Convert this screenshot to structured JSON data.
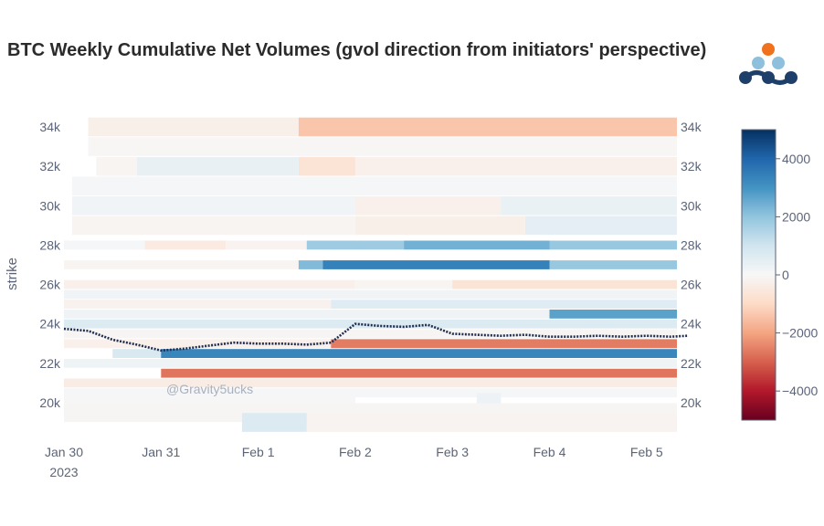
{
  "header": {
    "title": "BTC Weekly Cumulative Net Volumes (gvol direction from initiators' perspective)"
  },
  "logo": {
    "top_color": "#f0711e",
    "mid_color": "#8ec0de",
    "bottom_color": "#1f3f6b"
  },
  "watermark": "@Gravity5ucks",
  "colors": {
    "price_line": "#1f2d50"
  },
  "chart_data": {
    "type": "heatmap",
    "title": "BTC Weekly Cumulative Net Volumes (gvol direction from initiators' perspective)",
    "ylabel": "strike",
    "xlabel": "",
    "x_tick_labels": [
      "Jan 30",
      "Jan 31",
      "Feb 1",
      "Feb 2",
      "Feb 3",
      "Feb 4",
      "Feb 5"
    ],
    "x_tick_sublabel": "2023",
    "x_start": "2023-01-30",
    "x_end": "2023-02-05 12:00",
    "y_tick_values": [
      20000,
      22000,
      24000,
      26000,
      28000,
      30000,
      32000,
      34000
    ],
    "y_tick_labels": [
      "20k",
      "22k",
      "24k",
      "26k",
      "28k",
      "30k",
      "32k",
      "34k"
    ],
    "ylim": [
      18700,
      35000
    ],
    "colorscale": "RdBu",
    "zlim": [
      -5000,
      5000
    ],
    "colorbar_tick_values": [
      4000,
      2000,
      0,
      -2000,
      -4000
    ],
    "colorbar_tick_labels": [
      "4000",
      "2000",
      "0",
      "−2000",
      "−4000"
    ],
    "heatmap_bands": [
      {
        "strike": 34000,
        "segments": [
          {
            "from": "2023-01-30 06:00",
            "to": "2023-02-01 10:00",
            "value": -300
          },
          {
            "from": "2023-02-01 10:00",
            "to": "2023-02-05 12:00",
            "value": -1400
          }
        ]
      },
      {
        "strike": 33000,
        "segments": [
          {
            "from": "2023-01-30 06:00",
            "to": "2023-02-05 12:00",
            "value": -50
          }
        ]
      },
      {
        "strike": 32000,
        "segments": [
          {
            "from": "2023-01-30 08:00",
            "to": "2023-01-30 18:00",
            "value": -100
          },
          {
            "from": "2023-01-30 18:00",
            "to": "2023-02-01 10:00",
            "value": 400
          },
          {
            "from": "2023-02-01 10:00",
            "to": "2023-02-02 00:00",
            "value": -700
          },
          {
            "from": "2023-02-02 00:00",
            "to": "2023-02-05 12:00",
            "value": -250
          }
        ]
      },
      {
        "strike": 31000,
        "segments": [
          {
            "from": "2023-01-30 02:00",
            "to": "2023-02-05 12:00",
            "value": 60
          }
        ]
      },
      {
        "strike": 30000,
        "segments": [
          {
            "from": "2023-01-30 02:00",
            "to": "2023-02-02 00:00",
            "value": 150
          },
          {
            "from": "2023-02-02 00:00",
            "to": "2023-02-03 12:00",
            "value": -250
          },
          {
            "from": "2023-02-03 12:00",
            "to": "2023-02-05 12:00",
            "value": 350
          }
        ]
      },
      {
        "strike": 29000,
        "segments": [
          {
            "from": "2023-01-30 02:00",
            "to": "2023-02-02 00:00",
            "value": -100
          },
          {
            "from": "2023-02-02 00:00",
            "to": "2023-02-03 18:00",
            "value": -300
          },
          {
            "from": "2023-02-03 18:00",
            "to": "2023-02-05 12:00",
            "value": 500
          }
        ]
      },
      {
        "strike": 28000,
        "segments": [
          {
            "from": "2023-01-30 00:00",
            "to": "2023-01-30 20:00",
            "value": 50
          },
          {
            "from": "2023-01-30 20:00",
            "to": "2023-01-31 16:00",
            "value": -450
          },
          {
            "from": "2023-01-31 16:00",
            "to": "2023-02-01 12:00",
            "value": -150
          },
          {
            "from": "2023-02-01 12:00",
            "to": "2023-02-02 12:00",
            "value": 1800
          },
          {
            "from": "2023-02-02 12:00",
            "to": "2023-02-04 00:00",
            "value": 2400
          },
          {
            "from": "2023-02-04 00:00",
            "to": "2023-02-05 12:00",
            "value": 1900
          }
        ]
      },
      {
        "strike": 27000,
        "segments": [
          {
            "from": "2023-01-30 00:00",
            "to": "2023-02-01 10:00",
            "value": -120
          },
          {
            "from": "2023-02-01 10:00",
            "to": "2023-02-01 16:00",
            "value": 2200
          },
          {
            "from": "2023-02-01 16:00",
            "to": "2023-02-04 00:00",
            "value": 3400
          },
          {
            "from": "2023-02-04 00:00",
            "to": "2023-02-05 12:00",
            "value": 1900
          }
        ]
      },
      {
        "strike": 26000,
        "segments": [
          {
            "from": "2023-01-30 00:00",
            "to": "2023-02-02 00:00",
            "value": -250
          },
          {
            "from": "2023-02-02 00:00",
            "to": "2023-02-03 00:00",
            "value": -120
          },
          {
            "from": "2023-02-03 00:00",
            "to": "2023-02-05 12:00",
            "value": -700
          }
        ]
      },
      {
        "strike": 25500,
        "segments": [
          {
            "from": "2023-01-30 00:00",
            "to": "2023-02-05 12:00",
            "value": 150
          }
        ]
      },
      {
        "strike": 25000,
        "segments": [
          {
            "from": "2023-01-30 00:00",
            "to": "2023-02-01 18:00",
            "value": -200
          },
          {
            "from": "2023-02-01 18:00",
            "to": "2023-02-05 12:00",
            "value": 600
          }
        ]
      },
      {
        "strike": 24500,
        "segments": [
          {
            "from": "2023-01-30 00:00",
            "to": "2023-02-04 00:00",
            "value": 200
          },
          {
            "from": "2023-02-04 00:00",
            "to": "2023-02-05 12:00",
            "value": 2700
          }
        ]
      },
      {
        "strike": 24000,
        "segments": [
          {
            "from": "2023-01-30 00:00",
            "to": "2023-02-05 12:00",
            "value": 700
          }
        ]
      },
      {
        "strike": 23500,
        "segments": [
          {
            "from": "2023-01-30 00:00",
            "to": "2023-02-05 12:00",
            "value": -80
          }
        ]
      },
      {
        "strike": 23000,
        "segments": [
          {
            "from": "2023-01-30 00:00",
            "to": "2023-02-01 18:00",
            "value": -250
          },
          {
            "from": "2023-02-01 18:00",
            "to": "2023-02-05 12:00",
            "value": -2600
          }
        ]
      },
      {
        "strike": 22500,
        "segments": [
          {
            "from": "2023-01-30 12:00",
            "to": "2023-01-31 00:00",
            "value": 800
          },
          {
            "from": "2023-01-31 00:00",
            "to": "2023-02-05 12:00",
            "value": 3300
          }
        ]
      },
      {
        "strike": 22000,
        "segments": [
          {
            "from": "2023-01-30 00:00",
            "to": "2023-02-05 12:00",
            "value": 250
          }
        ]
      },
      {
        "strike": 21500,
        "segments": [
          {
            "from": "2023-01-31 00:00",
            "to": "2023-02-05 12:00",
            "value": -2700
          }
        ]
      },
      {
        "strike": 21000,
        "segments": [
          {
            "from": "2023-01-30 00:00",
            "to": "2023-02-05 12:00",
            "value": -400
          }
        ]
      },
      {
        "strike": 20500,
        "segments": [
          {
            "from": "2023-01-30 00:00",
            "to": "2023-02-05 12:00",
            "value": 50
          }
        ]
      },
      {
        "strike": 20000,
        "segments": [
          {
            "from": "2023-01-30 00:00",
            "to": "2023-02-02 00:00",
            "value": 30
          },
          {
            "from": "2023-02-03 06:00",
            "to": "2023-02-03 12:00",
            "value": 300
          }
        ]
      },
      {
        "strike": 19500,
        "segments": [
          {
            "from": "2023-01-30 00:00",
            "to": "2023-02-05 12:00",
            "value": -60
          }
        ]
      },
      {
        "strike": 19000,
        "segments": [
          {
            "from": "2023-01-31 20:00",
            "to": "2023-02-01 12:00",
            "value": 700
          },
          {
            "from": "2023-02-01 12:00",
            "to": "2023-02-05 12:00",
            "value": -150
          }
        ]
      }
    ],
    "price_series": {
      "x": [
        "2023-01-30 00:00",
        "2023-01-30 06:00",
        "2023-01-30 12:00",
        "2023-01-30 18:00",
        "2023-01-31 00:00",
        "2023-01-31 06:00",
        "2023-01-31 12:00",
        "2023-01-31 18:00",
        "2023-02-01 00:00",
        "2023-02-01 06:00",
        "2023-02-01 12:00",
        "2023-02-01 18:00",
        "2023-02-02 00:00",
        "2023-02-02 06:00",
        "2023-02-02 12:00",
        "2023-02-02 18:00",
        "2023-02-03 00:00",
        "2023-02-03 06:00",
        "2023-02-03 12:00",
        "2023-02-03 18:00",
        "2023-02-04 00:00",
        "2023-02-04 06:00",
        "2023-02-04 12:00",
        "2023-02-04 18:00",
        "2023-02-05 00:00",
        "2023-02-05 06:00",
        "2023-02-05 10:00"
      ],
      "values": [
        23750,
        23650,
        23200,
        22950,
        22650,
        22750,
        22900,
        23050,
        23000,
        23000,
        22950,
        23050,
        24000,
        23900,
        23850,
        23950,
        23500,
        23450,
        23400,
        23450,
        23350,
        23350,
        23400,
        23350,
        23400,
        23350,
        23400
      ]
    }
  }
}
